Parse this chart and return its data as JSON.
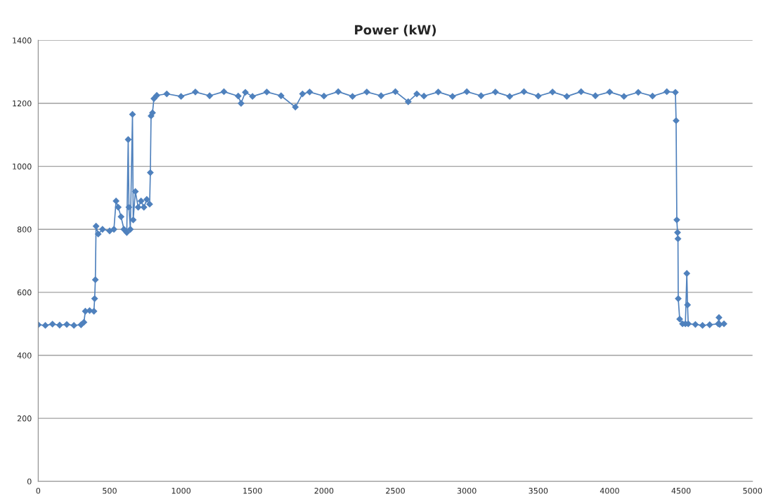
{
  "chart_data": {
    "type": "line",
    "title": "Power (kW)",
    "xlim": [
      0,
      5000
    ],
    "xticks": [
      0,
      500,
      1000,
      1500,
      2000,
      2500,
      3000,
      3500,
      4000,
      4500,
      5000
    ],
    "ylim": [
      0,
      1400
    ],
    "yticks": [
      0,
      200,
      400,
      600,
      800,
      1000,
      1200,
      1400
    ],
    "grid": "y",
    "marker": "diamond",
    "line_style": "solid",
    "series": [
      {
        "color": "#4f81bd",
        "x": [
          0,
          50,
          100,
          150,
          200,
          250,
          300,
          320,
          330,
          360,
          390,
          395,
          400,
          405,
          420,
          450,
          500,
          530,
          545,
          560,
          580,
          600,
          620,
          630,
          635,
          645,
          660,
          665,
          680,
          700,
          720,
          740,
          760,
          780,
          785,
          790,
          800,
          810,
          830,
          900,
          1000,
          1100,
          1200,
          1300,
          1400,
          1420,
          1450,
          1500,
          1600,
          1700,
          1800,
          1850,
          1900,
          2000,
          2100,
          2200,
          2300,
          2400,
          2500,
          2590,
          2650,
          2700,
          2800,
          2900,
          3000,
          3100,
          3200,
          3300,
          3400,
          3500,
          3600,
          3700,
          3800,
          3900,
          4000,
          4100,
          4200,
          4300,
          4400,
          4460,
          4465,
          4470,
          4475,
          4478,
          4480,
          4490,
          4510,
          4530,
          4540,
          4545,
          4550,
          4600,
          4650,
          4700,
          4760,
          4765,
          4770,
          4800
        ],
        "values": [
          497,
          495,
          499,
          496,
          498,
          495,
          497,
          505,
          540,
          542,
          540,
          580,
          640,
          810,
          785,
          800,
          795,
          800,
          890,
          870,
          840,
          800,
          790,
          1085,
          870,
          800,
          1165,
          830,
          920,
          870,
          890,
          870,
          895,
          880,
          980,
          1160,
          1170,
          1215,
          1225,
          1230,
          1222,
          1236,
          1224,
          1237,
          1223,
          1200,
          1235,
          1222,
          1236,
          1224,
          1188,
          1230,
          1236,
          1223,
          1237,
          1222,
          1236,
          1224,
          1237,
          1205,
          1230,
          1223,
          1236,
          1222,
          1237,
          1224,
          1236,
          1222,
          1237,
          1223,
          1236,
          1222,
          1237,
          1224,
          1236,
          1222,
          1235,
          1223,
          1237,
          1235,
          1145,
          830,
          790,
          770,
          580,
          515,
          500,
          500,
          660,
          560,
          500,
          498,
          495,
          497,
          500,
          520,
          498,
          500
        ]
      }
    ]
  }
}
